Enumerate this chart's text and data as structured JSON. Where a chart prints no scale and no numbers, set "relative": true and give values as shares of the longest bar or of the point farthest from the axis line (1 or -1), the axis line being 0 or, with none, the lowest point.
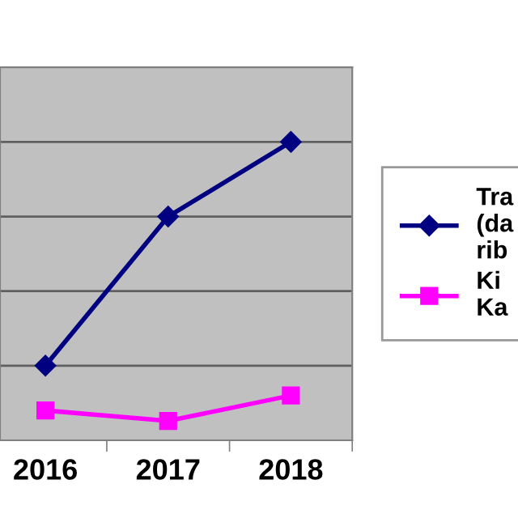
{
  "chart_data": {
    "type": "line",
    "relative": true,
    "categories": [
      "2016",
      "2017",
      "2018"
    ],
    "series": [
      {
        "name": "Tra\n(da\nrib",
        "color": "#000080",
        "values": [
          0.25,
          0.75,
          1.0
        ],
        "marker": "diamond"
      },
      {
        "name": "Ki\nKa",
        "color": "#ff00ff",
        "values": [
          0.1,
          0.065,
          0.15
        ],
        "marker": "square"
      }
    ],
    "grid": "y",
    "legend": "right",
    "line_style": "solid"
  }
}
